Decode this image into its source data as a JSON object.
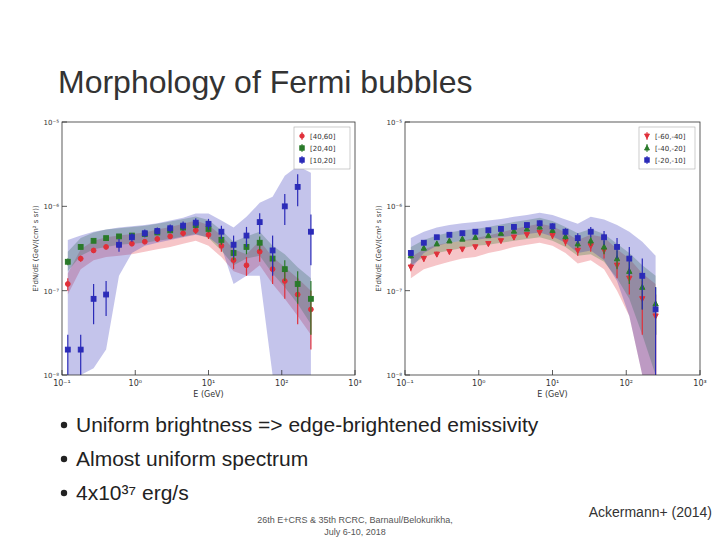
{
  "slide": {
    "title": "Morphology of Fermi bubbles",
    "bullets": [
      "Uniform brightness => edge-brightened emissivity",
      "Almost uniform spectrum",
      "4x10³⁷ erg/s"
    ],
    "footer": [
      "26th E+CRS & 35th RCRC, Barnaul/Belokurikha,",
      "July 6-10, 2018"
    ],
    "credit": "Ackermann+ (2014)"
  },
  "chart_data": [
    {
      "type": "scatter",
      "x_label": "E (GeV)",
      "y_label": "E²dN/dE (GeV/(cm² s sr))",
      "log": true,
      "grid": false,
      "legend": "upper right",
      "xlim": [
        0.1,
        1000
      ],
      "ylim": [
        1e-08,
        1e-05
      ],
      "xticks": [
        {
          "value": 0.1,
          "label": "10⁻¹"
        },
        {
          "value": 1,
          "label": "10⁰"
        },
        {
          "value": 10,
          "label": "10¹"
        },
        {
          "value": 100,
          "label": "10²"
        },
        {
          "value": 1000,
          "label": "10³"
        }
      ],
      "yticks": [
        {
          "value": 1e-08,
          "label": "10⁻⁸"
        },
        {
          "value": 1e-07,
          "label": "10⁻⁷"
        },
        {
          "value": 1e-06,
          "label": "10⁻⁶"
        },
        {
          "value": 1e-05,
          "label": "10⁻⁵"
        }
      ],
      "x": [
        0.12,
        0.18,
        0.27,
        0.4,
        0.6,
        0.9,
        1.35,
        2,
        3,
        4.5,
        6.7,
        10,
        15,
        22,
        33,
        50,
        75,
        110,
        165,
        250
      ],
      "series": [
        {
          "name": "[40,60]",
          "color": "#e0303a",
          "marker": "circle",
          "values": [
            1.2e-07,
            2.4e-07,
            3e-07,
            3.3e-07,
            3.5e-07,
            3.6e-07,
            3.8e-07,
            4.1e-07,
            4.4e-07,
            4.8e-07,
            5.2e-07,
            4.6e-07,
            3.4e-07,
            2.3e-07,
            2e-07,
            2.9e-07,
            1.8e-07,
            1.3e-07,
            9e-08,
            6e-08
          ],
          "errors": [
            2e-08,
            2e-08,
            2e-08,
            2e-08,
            2e-08,
            2e-08,
            2e-08,
            3e-08,
            3e-08,
            4e-08,
            5e-08,
            5e-08,
            5e-08,
            5e-08,
            5e-08,
            7e-08,
            6e-08,
            5e-08,
            5e-08,
            4e-08
          ],
          "band_low": [
            9e-08,
            1.8e-07,
            2.3e-07,
            2.5e-07,
            2.6e-07,
            2.7e-07,
            2.9e-07,
            3.1e-07,
            3.3e-07,
            3.6e-07,
            3.9e-07,
            3.4e-07,
            2.5e-07,
            1.7e-07,
            1.5e-07,
            2e-07,
            1.2e-07,
            8e-08,
            5e-08,
            3e-08
          ],
          "band_high": [
            1.6e-07,
            3.1e-07,
            3.9e-07,
            4.3e-07,
            4.5e-07,
            4.7e-07,
            4.9e-07,
            5.3e-07,
            5.7e-07,
            6.2e-07,
            6.8e-07,
            6e-07,
            4.5e-07,
            3.1e-07,
            2.7e-07,
            3.9e-07,
            2.5e-07,
            1.9e-07,
            1.4e-07,
            1e-07
          ]
        },
        {
          "name": "[20,40]",
          "color": "#2a7a2a",
          "marker": "square",
          "values": [
            2.2e-07,
            3.3e-07,
            3.9e-07,
            4.2e-07,
            4.4e-07,
            4.5e-07,
            4.7e-07,
            4.9e-07,
            5.2e-07,
            5.6e-07,
            6e-07,
            5.4e-07,
            4e-07,
            2.8e-07,
            3.3e-07,
            3.7e-07,
            2.4e-07,
            1.8e-07,
            1.2e-07,
            8e-08
          ],
          "errors": [
            2e-08,
            2e-08,
            2e-08,
            2e-08,
            2e-08,
            2e-08,
            2e-08,
            3e-08,
            3e-08,
            4e-08,
            5e-08,
            5e-08,
            5e-08,
            5e-08,
            6e-08,
            7e-08,
            6e-08,
            5e-08,
            5e-08,
            5e-08
          ],
          "band_low": [
            1.7e-07,
            2.6e-07,
            3.1e-07,
            3.3e-07,
            3.5e-07,
            3.6e-07,
            3.7e-07,
            3.9e-07,
            4.1e-07,
            4.4e-07,
            4.7e-07,
            4.2e-07,
            3e-07,
            2e-07,
            2.4e-07,
            2.6e-07,
            1.6e-07,
            1.1e-07,
            7e-08,
            4e-08
          ],
          "band_high": [
            2.9e-07,
            4.2e-07,
            4.9e-07,
            5.3e-07,
            5.5e-07,
            5.7e-07,
            5.9e-07,
            6.2e-07,
            6.6e-07,
            7.1e-07,
            7.6e-07,
            6.9e-07,
            5.2e-07,
            3.8e-07,
            4.4e-07,
            5e-07,
            3.4e-07,
            2.7e-07,
            1.9e-07,
            1.4e-07
          ]
        },
        {
          "name": "[10,20]",
          "color": "#2b2bb8",
          "marker": "square",
          "values": [
            2e-08,
            2e-08,
            8e-08,
            9e-08,
            3.5e-07,
            4.3e-07,
            4.8e-07,
            5.1e-07,
            5.5e-07,
            5.9e-07,
            6.4e-07,
            6.2e-07,
            5e-07,
            3.5e-07,
            4.5e-07,
            6.5e-07,
            3e-07,
            1e-06,
            1.7e-06,
            5e-07
          ],
          "errors": [
            1e-08,
            1e-08,
            4e-08,
            4e-08,
            6e-08,
            5e-08,
            5e-08,
            5e-08,
            6e-08,
            7e-08,
            8e-08,
            9e-08,
            9e-08,
            1e-07,
            1.2e-07,
            1.8e-07,
            1.5e-07,
            4e-07,
            7e-07,
            3e-07
          ],
          "band_low": [
            1e-08,
            1e-08,
            1.2e-08,
            2e-08,
            1.5e-07,
            2.8e-07,
            3.4e-07,
            3.7e-07,
            4e-07,
            4.3e-07,
            4.6e-07,
            4.3e-07,
            3.3e-07,
            1.2e-07,
            1.5e-07,
            1.5e-07,
            1e-08,
            1e-08,
            1e-08,
            1e-08
          ],
          "band_high": [
            4e-07,
            4.5e-07,
            5e-07,
            5.3e-07,
            5.6e-07,
            5.8e-07,
            6e-07,
            6.3e-07,
            6.8e-07,
            7.3e-07,
            8.2e-07,
            8.2e-07,
            6.8e-07,
            5.6e-07,
            7.5e-07,
            1.1e-06,
            1.3e-06,
            2.3e-06,
            3e-06,
            2.5e-06
          ]
        }
      ]
    },
    {
      "type": "scatter",
      "x_label": "E (GeV)",
      "y_label": "E²dN/dE (GeV/(cm² s sr))",
      "log": true,
      "grid": false,
      "legend": "upper right",
      "xlim": [
        0.1,
        1000
      ],
      "ylim": [
        1e-08,
        1e-05
      ],
      "xticks": [
        {
          "value": 0.1,
          "label": "10⁻¹"
        },
        {
          "value": 1,
          "label": "10⁰"
        },
        {
          "value": 10,
          "label": "10¹"
        },
        {
          "value": 100,
          "label": "10²"
        },
        {
          "value": 1000,
          "label": "10³"
        }
      ],
      "yticks": [
        {
          "value": 1e-08,
          "label": "10⁻⁸"
        },
        {
          "value": 1e-07,
          "label": "10⁻⁷"
        },
        {
          "value": 1e-06,
          "label": "10⁻⁶"
        },
        {
          "value": 1e-05,
          "label": "10⁻⁵"
        }
      ],
      "x": [
        0.12,
        0.18,
        0.27,
        0.4,
        0.6,
        0.9,
        1.35,
        2,
        3,
        4.5,
        6.7,
        10,
        15,
        22,
        33,
        50,
        75,
        110,
        165,
        250
      ],
      "series": [
        {
          "name": "[-60,-40]",
          "color": "#e0303a",
          "marker": "triangle-down",
          "values": [
            1.9e-07,
            2.4e-07,
            2.7e-07,
            2.9e-07,
            3.1e-07,
            3.3e-07,
            3.6e-07,
            3.9e-07,
            4.3e-07,
            4.6e-07,
            4.9e-07,
            4.5e-07,
            3.8e-07,
            3e-07,
            3.4e-07,
            3e-07,
            2e-07,
            1.4e-07,
            8e-08,
            5e-08
          ],
          "errors": [
            2e-08,
            2e-08,
            2e-08,
            2e-08,
            2e-08,
            2e-08,
            2e-08,
            2e-08,
            3e-08,
            3e-08,
            4e-08,
            4e-08,
            4e-08,
            4e-08,
            5e-08,
            6e-08,
            6e-08,
            5e-08,
            5e-08,
            4e-08
          ],
          "band_low": [
            1.4e-07,
            1.8e-07,
            2e-07,
            2.2e-07,
            2.4e-07,
            2.5e-07,
            2.8e-07,
            3e-07,
            3.3e-07,
            3.5e-07,
            3.7e-07,
            3.4e-07,
            2.8e-07,
            2.1e-07,
            2.3e-07,
            1.8e-07,
            1e-07,
            5e-08,
            1e-08,
            1e-08
          ],
          "band_high": [
            2.5e-07,
            3.1e-07,
            3.5e-07,
            3.7e-07,
            3.9e-07,
            4.2e-07,
            4.5e-07,
            4.9e-07,
            5.4e-07,
            5.8e-07,
            6.2e-07,
            5.8e-07,
            4.9e-07,
            4e-07,
            4.6e-07,
            4.3e-07,
            3.1e-07,
            2.4e-07,
            1.6e-07,
            1.2e-07
          ]
        },
        {
          "name": "[-40,-20]",
          "color": "#2a7a2a",
          "marker": "triangle-up",
          "values": [
            2.6e-07,
            3.2e-07,
            3.6e-07,
            3.9e-07,
            4.1e-07,
            4.3e-07,
            4.5e-07,
            4.8e-07,
            5.1e-07,
            5.4e-07,
            5.7e-07,
            5.2e-07,
            4.4e-07,
            3.6e-07,
            3.9e-07,
            3.3e-07,
            2.4e-07,
            1.7e-07,
            1.1e-07,
            7e-08
          ],
          "errors": [
            2e-08,
            2e-08,
            2e-08,
            2e-08,
            2e-08,
            2e-08,
            2e-08,
            2e-08,
            3e-08,
            3e-08,
            4e-08,
            4e-08,
            4e-08,
            4e-08,
            5e-08,
            6e-08,
            6e-08,
            5e-08,
            5e-08,
            4e-08
          ],
          "band_low": [
            2e-07,
            2.5e-07,
            2.8e-07,
            3e-07,
            3.2e-07,
            3.4e-07,
            3.5e-07,
            3.7e-07,
            3.9e-07,
            4.1e-07,
            4.3e-07,
            3.9e-07,
            3.3e-07,
            2.6e-07,
            2.7e-07,
            2.2e-07,
            1.4e-07,
            8e-08,
            3e-08,
            1e-08
          ],
          "band_high": [
            3.3e-07,
            4e-07,
            4.5e-07,
            4.9e-07,
            5.2e-07,
            5.4e-07,
            5.7e-07,
            6.1e-07,
            6.5e-07,
            6.9e-07,
            7.3e-07,
            6.7e-07,
            5.7e-07,
            4.8e-07,
            5.4e-07,
            4.7e-07,
            3.6e-07,
            2.8e-07,
            2e-07,
            1.5e-07
          ]
        },
        {
          "name": "[-20,-10]",
          "color": "#2b2bb8",
          "marker": "square",
          "values": [
            2.8e-07,
            3.7e-07,
            4.3e-07,
            4.6e-07,
            4.8e-07,
            5e-07,
            5.2e-07,
            5.4e-07,
            5.7e-07,
            6e-07,
            6.3e-07,
            5.8e-07,
            5e-07,
            4.2e-07,
            5e-07,
            4.3e-07,
            3.3e-07,
            2.4e-07,
            1.5e-07,
            6e-08
          ],
          "errors": [
            2e-08,
            2e-08,
            2e-08,
            2e-08,
            2e-08,
            2e-08,
            2e-08,
            3e-08,
            3e-08,
            4e-08,
            5e-08,
            5e-08,
            5e-08,
            6e-08,
            7e-08,
            8e-08,
            9e-08,
            9e-08,
            9e-08,
            5e-08
          ],
          "band_low": [
            1.8e-07,
            2.8e-07,
            3.4e-07,
            3.7e-07,
            3.9e-07,
            4e-07,
            4.2e-07,
            4.3e-07,
            4.5e-07,
            4.7e-07,
            4.9e-07,
            4.4e-07,
            3.7e-07,
            2.8e-07,
            3e-07,
            2.3e-07,
            1.3e-07,
            5e-08,
            1e-08,
            1e-08
          ],
          "band_high": [
            4.2e-07,
            5e-07,
            5.6e-07,
            6e-07,
            6.3e-07,
            6.5e-07,
            6.8e-07,
            7.1e-07,
            7.5e-07,
            7.9e-07,
            8.4e-07,
            7.9e-07,
            7e-07,
            6.2e-07,
            7.5e-07,
            7e-07,
            6e-07,
            5e-07,
            3.8e-07,
            2.6e-07
          ]
        }
      ]
    }
  ]
}
